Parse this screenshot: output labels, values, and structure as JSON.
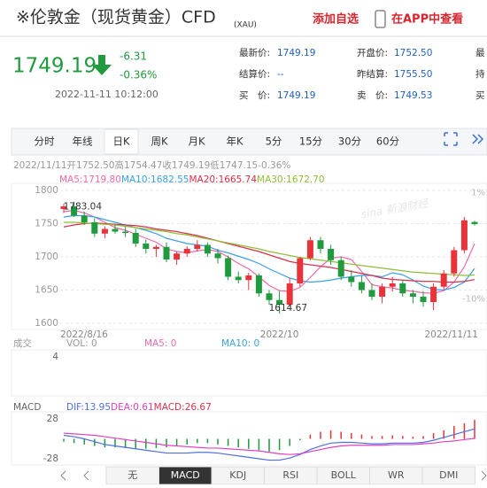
{
  "header": {
    "title": "※伦敦金（现货黄金）CFD",
    "code": "(XAU)",
    "add": "添加自选",
    "app": "在APP中查看"
  },
  "quote": {
    "price": "1749.19",
    "change": "-6.31",
    "pct": "-0.36%",
    "time": "2022-11-11 10:12:00"
  },
  "fields": [
    [
      {
        "label": "最新价:",
        "value": "1749.19"
      },
      {
        "label": "开盘价:",
        "value": "1752.50"
      },
      {
        "label": "最"
      }
    ],
    [
      {
        "label": "结算价:",
        "value": "--"
      },
      {
        "label": "昨结算:",
        "value": "1755.50"
      },
      {
        "label": "持"
      }
    ],
    [
      {
        "label": "买　价:",
        "value": "1749.19"
      },
      {
        "label": "卖　价:",
        "value": "1749.53"
      },
      {
        "label": "买"
      }
    ]
  ],
  "tabs": [
    "分时",
    "年线",
    "日K",
    "周K",
    "月K",
    "年K",
    "5分",
    "15分",
    "30分",
    "60分"
  ],
  "active_tab": 2,
  "indicator_tabs": [
    "无",
    "MACD",
    "KDJ",
    "RSI",
    "BOLL",
    "WR",
    "DMI"
  ],
  "active_indicator": 1,
  "info": {
    "date": "2022/11/11",
    "items": [
      {
        "label": "开",
        "value": "1752.50"
      },
      {
        "label": "高",
        "value": "1754.47"
      },
      {
        "label": "收",
        "value": "1749.19"
      },
      {
        "label": "低",
        "value": "1747.15"
      }
    ],
    "pct": "-0.36%"
  },
  "watermark": "sina 新浪财经",
  "chart_data": [
    {
      "type": "candlestick",
      "up_color": "#e8333a",
      "down_color": "#1f9a3c",
      "categories": [
        "2022/8/16",
        null,
        null,
        null,
        null,
        null,
        null,
        null,
        null,
        null,
        null,
        null,
        null,
        null,
        null,
        null,
        null,
        null,
        null,
        null,
        null,
        "2022/10",
        null,
        null,
        null,
        null,
        null,
        null,
        null,
        null,
        null,
        null,
        null,
        null,
        null,
        null,
        null,
        null,
        null,
        null,
        "2022/11/11"
      ],
      "open": [
        1772,
        1776,
        1762,
        1752,
        1735,
        1742,
        1738,
        1736,
        1720,
        1712,
        1715,
        1696,
        1705,
        1712,
        1718,
        1705,
        1698,
        1670,
        1665,
        1672,
        1645,
        1635,
        1628,
        1660,
        1698,
        1725,
        1712,
        1695,
        1670,
        1662,
        1650,
        1640,
        1655,
        1660,
        1645,
        1640,
        1632,
        1655,
        1675,
        1710,
        1752.5
      ],
      "high": [
        1780,
        1783.04,
        1768,
        1758,
        1746,
        1748,
        1745,
        1742,
        1726,
        1718,
        1722,
        1708,
        1716,
        1725,
        1722,
        1712,
        1702,
        1678,
        1676,
        1675,
        1650,
        1648,
        1668,
        1700,
        1730,
        1730,
        1718,
        1700,
        1680,
        1672,
        1660,
        1660,
        1670,
        1665,
        1650,
        1648,
        1660,
        1680,
        1715,
        1760,
        1754.47
      ],
      "low": [
        1766,
        1760,
        1748,
        1730,
        1728,
        1735,
        1730,
        1715,
        1705,
        1700,
        1692,
        1688,
        1700,
        1708,
        1700,
        1690,
        1665,
        1660,
        1650,
        1640,
        1628,
        1614.67,
        1625,
        1655,
        1695,
        1705,
        1688,
        1665,
        1655,
        1645,
        1635,
        1630,
        1648,
        1640,
        1630,
        1625,
        1620,
        1650,
        1670,
        1705,
        1747.15
      ],
      "close": [
        1776,
        1762,
        1752,
        1735,
        1742,
        1738,
        1736,
        1720,
        1712,
        1715,
        1696,
        1705,
        1712,
        1718,
        1705,
        1698,
        1670,
        1665,
        1672,
        1645,
        1635,
        1628,
        1660,
        1698,
        1725,
        1712,
        1695,
        1670,
        1662,
        1650,
        1640,
        1655,
        1660,
        1645,
        1640,
        1632,
        1655,
        1675,
        1710,
        1755,
        1749.19
      ],
      "series": [
        {
          "name": "MA5:",
          "legend_value": "1719.80",
          "color": "#f06aa8",
          "values": [
            1768,
            1770,
            1766,
            1760,
            1752,
            1744,
            1740,
            1734,
            1728,
            1722,
            1712,
            1708,
            1706,
            1709,
            1711,
            1708,
            1700,
            1690,
            1682,
            1670,
            1657,
            1649,
            1648,
            1654,
            1669,
            1685,
            1698,
            1700,
            1696,
            1678,
            1658,
            1655,
            1653,
            1650,
            1648,
            1646,
            1645,
            1649,
            1662,
            1685,
            1719.8
          ]
        },
        {
          "name": "MA10:",
          "legend_value": "1682.55",
          "color": "#3aa0e6",
          "values": [
            1760,
            1762,
            1762,
            1760,
            1756,
            1752,
            1748,
            1744,
            1740,
            1735,
            1728,
            1724,
            1720,
            1718,
            1716,
            1710,
            1706,
            1701,
            1696,
            1690,
            1682,
            1675,
            1668,
            1664,
            1662,
            1663,
            1665,
            1668,
            1670,
            1672,
            1672,
            1670,
            1676,
            1673,
            1665,
            1656,
            1651,
            1650,
            1654,
            1662,
            1682.55
          ]
        },
        {
          "name": "MA20:",
          "legend_value": "1665.74",
          "color": "#d8304a",
          "values": [
            1745,
            1748,
            1750,
            1751,
            1750,
            1749,
            1748,
            1747,
            1745,
            1742,
            1740,
            1738,
            1735,
            1732,
            1728,
            1724,
            1720,
            1716,
            1712,
            1708,
            1703,
            1698,
            1693,
            1690,
            1688,
            1686,
            1684,
            1681,
            1678,
            1675,
            1672,
            1668,
            1666,
            1665,
            1664,
            1663,
            1663,
            1662,
            1662,
            1663,
            1665.74
          ]
        },
        {
          "name": "MA30:",
          "legend_value": "1672.70",
          "color": "#8fbf3a",
          "values": [
            1752,
            1752,
            1751,
            1750,
            1749,
            1748,
            1746,
            1744,
            1742,
            1740,
            1738,
            1735,
            1733,
            1730,
            1727,
            1724,
            1721,
            1718,
            1715,
            1712,
            1708,
            1705,
            1702,
            1699,
            1697,
            1695,
            1693,
            1691,
            1689,
            1687,
            1685,
            1683,
            1681,
            1679,
            1677,
            1676,
            1675,
            1674,
            1673,
            1672,
            1672.7
          ]
        }
      ],
      "ylim": [
        1600,
        1800
      ],
      "yticks": [
        1800,
        1750,
        1700,
        1650,
        1600
      ],
      "y2lim": [
        -12.5,
        1.25
      ],
      "y2ticks": [
        {
          "value": 1,
          "label": "1%"
        },
        {
          "value": -10,
          "label": "-10%"
        }
      ],
      "annotations": [
        {
          "text": "1783.04",
          "index": 1,
          "value": 1783.04
        },
        {
          "text": "1614.67",
          "index": 21,
          "value": 1614.67
        }
      ],
      "grid": true
    },
    {
      "type": "volume",
      "title": "成交",
      "legend": [
        "VOL: 0",
        "MA5: 0",
        "MA10: 0"
      ],
      "ylim": [
        0,
        4
      ],
      "yticks": [
        4
      ]
    },
    {
      "type": "macd",
      "title": "MACD",
      "ylim": [
        -35,
        35
      ],
      "yticks": [
        28,
        -28
      ],
      "histogram": {
        "name": "MACD:",
        "legend_value": "26.67",
        "up_color": "#e8333a",
        "down_color": "#1f9a3c",
        "values": [
          -4,
          -6,
          -8,
          -10,
          -12,
          -12,
          -13,
          -14,
          -14,
          -13,
          -12,
          -10,
          -8,
          -6,
          -6,
          -8,
          -10,
          -12,
          -14,
          -16,
          -18,
          -16,
          -10,
          -2,
          6,
          10,
          12,
          10,
          8,
          6,
          4,
          4,
          5,
          4,
          3,
          4,
          8,
          12,
          18,
          22,
          26.67
        ]
      },
      "series": [
        {
          "name": "DIF:",
          "legend_value": "13.95",
          "color": "#4f6fe0",
          "values": [
            5,
            3,
            0,
            -4,
            -8,
            -10,
            -12,
            -14,
            -16,
            -18,
            -20,
            -20,
            -20,
            -19,
            -19,
            -20,
            -22,
            -24,
            -26,
            -28,
            -30,
            -30,
            -27,
            -22,
            -15,
            -10,
            -6,
            -5,
            -5,
            -6,
            -7,
            -7,
            -6,
            -6,
            -6,
            -5,
            -2,
            2,
            6,
            10,
            13.95
          ]
        },
        {
          "name": "DEA:",
          "legend_value": "0.61",
          "color": "#e040c0",
          "values": [
            8,
            7,
            6,
            5,
            3,
            1,
            -1,
            -3,
            -5,
            -7,
            -9,
            -10,
            -11,
            -12,
            -13,
            -13,
            -14,
            -15,
            -16,
            -17,
            -19,
            -21,
            -22,
            -21,
            -18,
            -15,
            -12,
            -10,
            -9,
            -9,
            -9,
            -9,
            -8,
            -8,
            -8,
            -7,
            -6,
            -4,
            -3,
            -1,
            0.61
          ]
        }
      ]
    }
  ]
}
